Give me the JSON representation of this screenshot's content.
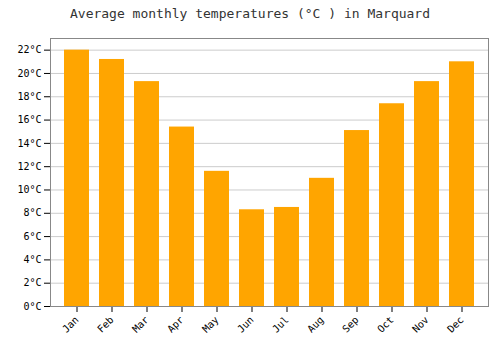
{
  "chart_data": {
    "type": "bar",
    "title": "Average monthly temperatures (°C ) in Marquard",
    "categories": [
      "Jan",
      "Feb",
      "Mar",
      "Apr",
      "May",
      "Jun",
      "Jul",
      "Aug",
      "Sep",
      "Oct",
      "Nov",
      "Dec"
    ],
    "values": [
      22.0,
      21.2,
      19.3,
      15.4,
      11.6,
      8.3,
      8.5,
      11.0,
      15.1,
      17.4,
      19.3,
      21.0
    ],
    "color": "#FFA500",
    "ylim": [
      0,
      23
    ],
    "yticks": [
      {
        "value": 0,
        "label": "0°C"
      },
      {
        "value": 2,
        "label": "2°C"
      },
      {
        "value": 4,
        "label": "4°C"
      },
      {
        "value": 6,
        "label": "6°C"
      },
      {
        "value": 8,
        "label": "8°C"
      },
      {
        "value": 10,
        "label": "10°C"
      },
      {
        "value": 12,
        "label": "12°C"
      },
      {
        "value": 14,
        "label": "14°C"
      },
      {
        "value": 16,
        "label": "16°C"
      },
      {
        "value": 18,
        "label": "18°C"
      },
      {
        "value": 20,
        "label": "20°C"
      },
      {
        "value": 22,
        "label": "22°C"
      }
    ],
    "grid": true
  }
}
